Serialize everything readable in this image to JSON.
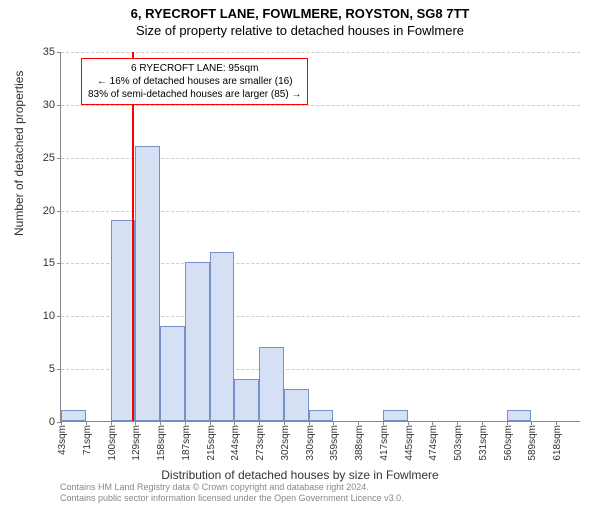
{
  "title_line1": "6, RYECROFT LANE, FOWLMERE, ROYSTON, SG8 7TT",
  "title_line2": "Size of property relative to detached houses in Fowlmere",
  "ylabel": "Number of detached properties",
  "xlabel": "Distribution of detached houses by size in Fowlmere",
  "ylim_max": 35,
  "ytick_step": 5,
  "yticks": [
    0,
    5,
    10,
    15,
    20,
    25,
    30,
    35
  ],
  "xticks": [
    "43sqm",
    "71sqm",
    "100sqm",
    "129sqm",
    "158sqm",
    "187sqm",
    "215sqm",
    "244sqm",
    "273sqm",
    "302sqm",
    "330sqm",
    "359sqm",
    "388sqm",
    "417sqm",
    "445sqm",
    "474sqm",
    "503sqm",
    "531sqm",
    "560sqm",
    "589sqm",
    "618sqm"
  ],
  "bars": [
    1,
    0,
    19,
    26,
    9,
    15,
    16,
    4,
    7,
    3,
    1,
    0,
    0,
    1,
    0,
    0,
    0,
    0,
    1,
    0,
    0
  ],
  "bar_fill": "#d6e0f5",
  "bar_border": "#7a8fc9",
  "grid_color": "#cccccc",
  "marker_color": "#ff0000",
  "marker_bin_index": 2,
  "marker_fraction_in_bin": 0.85,
  "annotation": {
    "line1": "6 RYECROFT LANE: 95sqm",
    "line2": "← 16% of detached houses are smaller (16)",
    "line3": "83% of semi-detached houses are larger (85) →"
  },
  "footer_line1": "Contains HM Land Registry data © Crown copyright and database right 2024.",
  "footer_line2": "Contains public sector information licensed under the Open Government Licence v3.0.",
  "background_color": "#ffffff",
  "font_family": "Arial"
}
